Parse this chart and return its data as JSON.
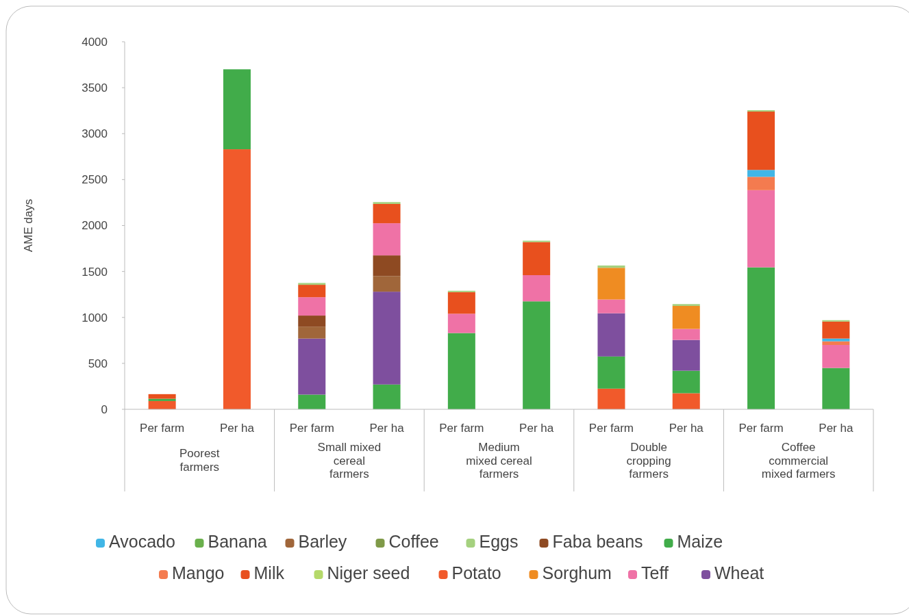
{
  "chart_data": {
    "type": "bar",
    "stacked": true,
    "ylabel": "AME days",
    "ylim": [
      0,
      4000
    ],
    "yticks": [
      0,
      500,
      1000,
      1500,
      2000,
      2500,
      3000,
      3500,
      4000
    ],
    "legend": "bottom",
    "categories": [
      "Per farm",
      "Per ha",
      "Per farm",
      "Per ha",
      "Per farm",
      "Per ha",
      "Per farm",
      "Per ha",
      "Per farm",
      "Per ha"
    ],
    "annotations": [
      "Poorest\nfarmers",
      "Small mixed\ncereal\nfarmers",
      "Medium\nmixed cereal\nfarmers",
      "Double\ncropping\nfarmers",
      "Coffee\ncommercial\nmixed farmers"
    ],
    "series": [
      {
        "name": "Potato",
        "color": "#f15a2b",
        "values": [
          90,
          2830,
          null,
          null,
          null,
          null,
          225,
          175,
          null,
          null
        ]
      },
      {
        "name": "Maize",
        "color": "#41ac4a",
        "values": [
          25,
          870,
          160,
          270,
          830,
          1175,
          350,
          245,
          1545,
          450
        ]
      },
      {
        "name": "Wheat",
        "color": "#7e4f9e",
        "values": [
          null,
          null,
          610,
          1010,
          null,
          null,
          470,
          335,
          null,
          null
        ]
      },
      {
        "name": "Barley",
        "color": "#a0663a",
        "values": [
          null,
          null,
          130,
          170,
          null,
          null,
          null,
          null,
          null,
          null
        ]
      },
      {
        "name": "Faba beans",
        "color": "#8e4a22",
        "values": [
          null,
          null,
          120,
          225,
          null,
          null,
          null,
          null,
          null,
          null
        ]
      },
      {
        "name": "Teff",
        "color": "#ef72a6",
        "values": [
          null,
          null,
          200,
          350,
          210,
          285,
          150,
          120,
          840,
          250
        ]
      },
      {
        "name": "Sorghum",
        "color": "#ef8c22",
        "values": [
          null,
          null,
          null,
          null,
          null,
          null,
          345,
          250,
          null,
          null
        ]
      },
      {
        "name": "Mango",
        "color": "#f47b4f",
        "values": [
          null,
          null,
          null,
          null,
          null,
          null,
          null,
          null,
          145,
          40
        ]
      },
      {
        "name": "Avocado",
        "color": "#41b6e6",
        "values": [
          null,
          null,
          null,
          null,
          null,
          null,
          null,
          null,
          75,
          30
        ]
      },
      {
        "name": "Milk",
        "color": "#e8501e",
        "values": [
          50,
          null,
          135,
          210,
          235,
          360,
          null,
          null,
          635,
          185
        ]
      },
      {
        "name": "Eggs",
        "color": "#a5d17f",
        "values": [
          null,
          null,
          20,
          20,
          15,
          15,
          25,
          20,
          15,
          15
        ]
      },
      {
        "name": "Banana",
        "color": "#6ab04c",
        "values": [
          null,
          null,
          null,
          null,
          null,
          null,
          null,
          null,
          null,
          null
        ]
      },
      {
        "name": "Coffee",
        "color": "#7f9a48",
        "values": [
          null,
          null,
          null,
          null,
          null,
          null,
          null,
          null,
          null,
          null
        ]
      },
      {
        "name": "Niger seed",
        "color": "#b5d96a",
        "values": [
          null,
          null,
          null,
          null,
          null,
          null,
          null,
          null,
          null,
          null
        ]
      }
    ]
  }
}
